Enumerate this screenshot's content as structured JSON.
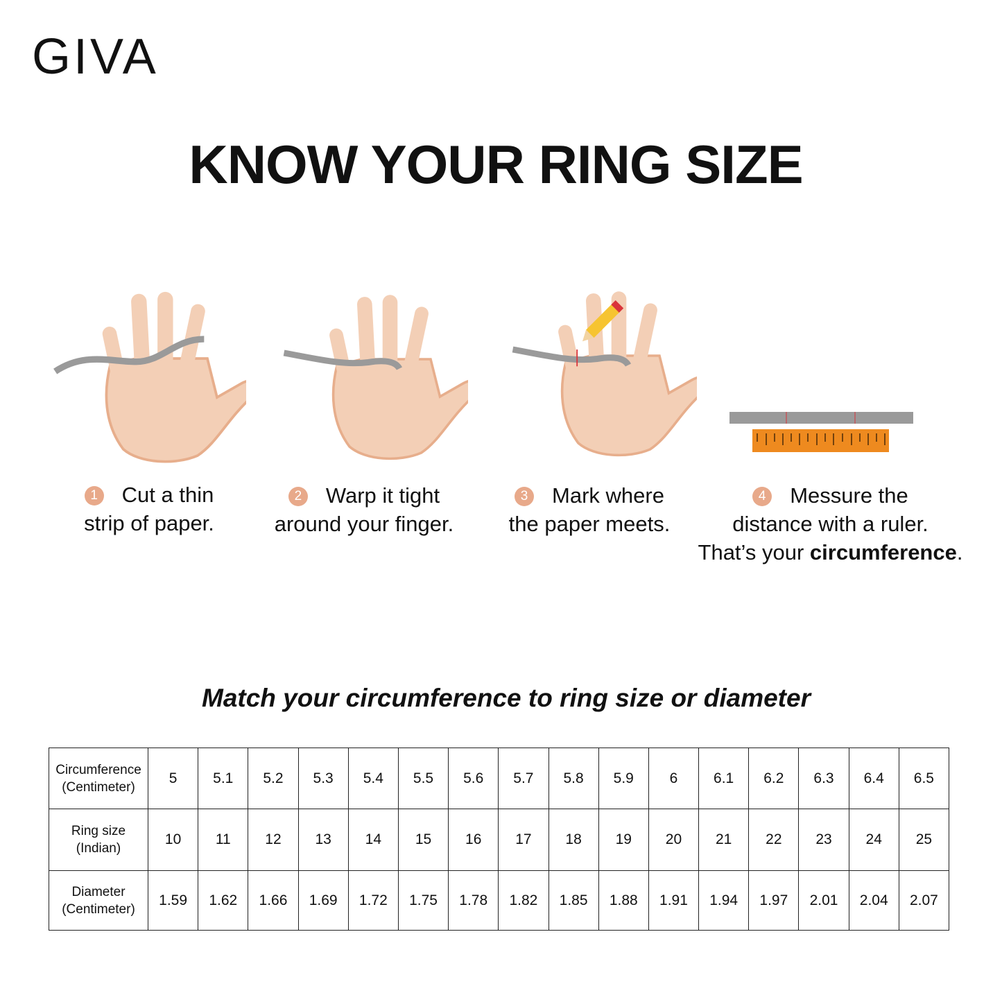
{
  "brand": {
    "logo": "GIVA"
  },
  "title": "KNOW YOUR RING SIZE",
  "steps": [
    {
      "number": "1",
      "line1": "Cut a thin",
      "line2": "strip of paper."
    },
    {
      "number": "2",
      "line1": "Warp it tight",
      "line2": "around your finger."
    },
    {
      "number": "3",
      "line1": "Mark where",
      "line2": "the paper meets."
    },
    {
      "number": "4",
      "line1": "Messure the",
      "line2": "distance with a ruler.",
      "line3_prefix": "That’s your ",
      "line3_bold": "circumference",
      "line3_suffix": "."
    }
  ],
  "colors": {
    "skin": "#f3cfb6",
    "skin_shadow": "#e7ae8c",
    "paper": "#9a9a9a",
    "ruler": "#ee8a1f",
    "badge": "#e8a98a",
    "mark": "#d9343b"
  },
  "subtitle": "Match your circumference to ring size or diameter",
  "table": {
    "rows": [
      {
        "label1": "Circumference",
        "label2": "(Centimeter)",
        "values": [
          "5",
          "5.1",
          "5.2",
          "5.3",
          "5.4",
          "5.5",
          "5.6",
          "5.7",
          "5.8",
          "5.9",
          "6",
          "6.1",
          "6.2",
          "6.3",
          "6.4",
          "6.5"
        ]
      },
      {
        "label1": "Ring size",
        "label2": "(Indian)",
        "values": [
          "10",
          "11",
          "12",
          "13",
          "14",
          "15",
          "16",
          "17",
          "18",
          "19",
          "20",
          "21",
          "22",
          "23",
          "24",
          "25"
        ]
      },
      {
        "label1": "Diameter",
        "label2": "(Centimeter)",
        "values": [
          "1.59",
          "1.62",
          "1.66",
          "1.69",
          "1.72",
          "1.75",
          "1.78",
          "1.82",
          "1.85",
          "1.88",
          "1.91",
          "1.94",
          "1.97",
          "2.01",
          "2.04",
          "2.07"
        ]
      }
    ]
  }
}
